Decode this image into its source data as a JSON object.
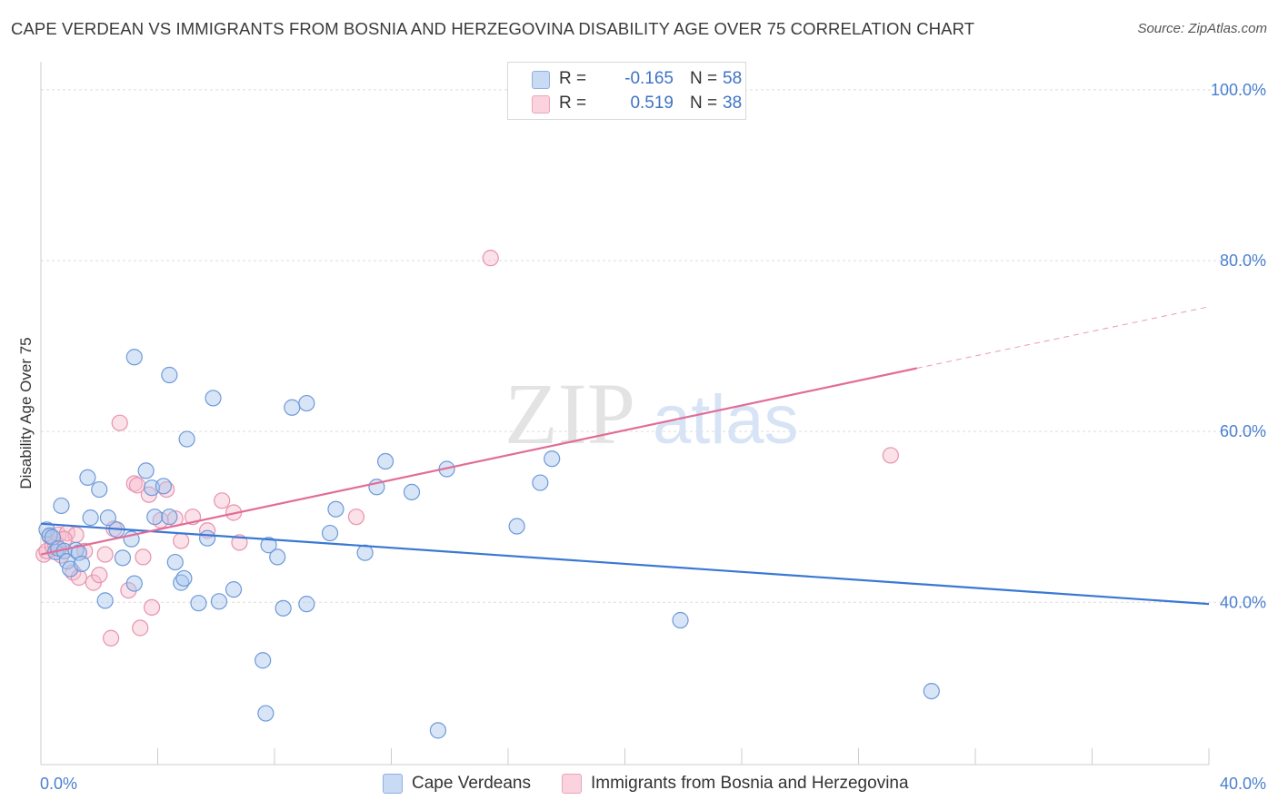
{
  "header": {
    "title": "CAPE VERDEAN VS IMMIGRANTS FROM BOSNIA AND HERZEGOVINA DISABILITY AGE OVER 75 CORRELATION CHART",
    "source": "Source: ZipAtlas.com"
  },
  "watermark": {
    "zip": "ZIP",
    "atlas": "atlas"
  },
  "legend": {
    "rows": [
      {
        "r_label": "R =",
        "r_value": "-0.165",
        "n_label": "N =",
        "n_value": "58",
        "color": "#a9c6ee"
      },
      {
        "r_label": "R =",
        "r_value": "0.519",
        "n_label": "N =",
        "n_value": "38",
        "color": "#f6bccd"
      }
    ]
  },
  "bottom_legend": {
    "cape": "Cape Verdeans",
    "bosnia": "Immigrants from Bosnia and Herzegovina"
  },
  "colors": {
    "blue_fill": "#a9c6ee",
    "blue_stroke": "#6e9ad9",
    "blue_line": "#3a78d4",
    "pink_fill": "#f6bccd",
    "pink_stroke": "#e793b0",
    "pink_line": "#e26d97",
    "axis_text": "#4a7fd0",
    "grid": "#dddddd"
  },
  "chart_data": {
    "type": "scatter",
    "title": "CAPE VERDEAN VS IMMIGRANTS FROM BOSNIA AND HERZEGOVINA DISABILITY AGE OVER 75 CORRELATION CHART",
    "xlabel": "",
    "ylabel": "Disability Age Over 75",
    "xlim": [
      0,
      40
    ],
    "ylim": [
      21,
      102
    ],
    "x_tick_labels": [
      "0.0%",
      "40.0%"
    ],
    "y_ticks": [
      40,
      60,
      80,
      100
    ],
    "y_tick_labels": [
      "40.0%",
      "60.0%",
      "80.0%",
      "100.0%"
    ],
    "grid": true,
    "legend_position": "top-center",
    "series": [
      {
        "name": "Cape Verdeans",
        "points": [
          [
            0.2,
            48.5
          ],
          [
            0.3,
            47.8
          ],
          [
            0.4,
            47.6
          ],
          [
            0.5,
            45.9
          ],
          [
            0.6,
            46.3
          ],
          [
            0.7,
            51.3
          ],
          [
            0.8,
            46.0
          ],
          [
            0.9,
            44.8
          ],
          [
            1.0,
            43.9
          ],
          [
            1.2,
            46.1
          ],
          [
            1.3,
            45.8
          ],
          [
            1.4,
            44.5
          ],
          [
            1.6,
            54.6
          ],
          [
            1.7,
            49.9
          ],
          [
            2.0,
            53.2
          ],
          [
            2.2,
            40.2
          ],
          [
            2.3,
            49.9
          ],
          [
            2.6,
            48.5
          ],
          [
            2.8,
            45.2
          ],
          [
            3.1,
            47.4
          ],
          [
            3.2,
            42.2
          ],
          [
            3.2,
            68.7
          ],
          [
            3.6,
            55.4
          ],
          [
            3.8,
            53.4
          ],
          [
            3.9,
            50.0
          ],
          [
            4.2,
            53.6
          ],
          [
            4.4,
            50.0
          ],
          [
            4.4,
            66.6
          ],
          [
            4.6,
            44.7
          ],
          [
            4.8,
            42.3
          ],
          [
            4.9,
            42.8
          ],
          [
            5.0,
            59.1
          ],
          [
            5.4,
            39.9
          ],
          [
            5.7,
            47.5
          ],
          [
            5.9,
            63.9
          ],
          [
            6.1,
            40.1
          ],
          [
            6.6,
            41.5
          ],
          [
            7.6,
            33.2
          ],
          [
            7.7,
            27.0
          ],
          [
            7.8,
            46.7
          ],
          [
            8.1,
            45.3
          ],
          [
            8.3,
            39.3
          ],
          [
            8.6,
            62.8
          ],
          [
            9.1,
            63.3
          ],
          [
            9.1,
            39.8
          ],
          [
            9.9,
            48.1
          ],
          [
            10.1,
            50.9
          ],
          [
            11.1,
            45.8
          ],
          [
            11.5,
            53.5
          ],
          [
            11.8,
            56.5
          ],
          [
            12.7,
            52.9
          ],
          [
            13.6,
            25.0
          ],
          [
            13.9,
            55.6
          ],
          [
            16.3,
            48.9
          ],
          [
            17.1,
            54.0
          ],
          [
            17.5,
            56.8
          ],
          [
            21.9,
            37.9
          ],
          [
            30.5,
            29.6
          ]
        ]
      },
      {
        "name": "Immigrants from Bosnia and Herzegovina",
        "points": [
          [
            0.1,
            45.6
          ],
          [
            0.2,
            46.0
          ],
          [
            0.3,
            47.7
          ],
          [
            0.4,
            46.5
          ],
          [
            0.5,
            46.8
          ],
          [
            0.6,
            47.9
          ],
          [
            0.7,
            45.5
          ],
          [
            0.9,
            48.1
          ],
          [
            1.1,
            43.5
          ],
          [
            1.2,
            47.9
          ],
          [
            1.3,
            42.9
          ],
          [
            1.5,
            46.0
          ],
          [
            1.8,
            42.3
          ],
          [
            2.0,
            43.2
          ],
          [
            2.2,
            45.6
          ],
          [
            2.4,
            35.8
          ],
          [
            2.5,
            48.6
          ],
          [
            2.7,
            61.0
          ],
          [
            3.0,
            41.4
          ],
          [
            3.2,
            53.9
          ],
          [
            3.3,
            53.7
          ],
          [
            3.4,
            37.0
          ],
          [
            3.5,
            45.3
          ],
          [
            3.7,
            52.6
          ],
          [
            3.8,
            39.4
          ],
          [
            4.1,
            49.6
          ],
          [
            4.3,
            53.2
          ],
          [
            4.6,
            49.8
          ],
          [
            4.8,
            47.2
          ],
          [
            5.2,
            50.0
          ],
          [
            5.7,
            48.4
          ],
          [
            6.2,
            51.9
          ],
          [
            6.6,
            50.5
          ],
          [
            6.8,
            47.0
          ],
          [
            10.8,
            50.0
          ],
          [
            15.4,
            80.3
          ],
          [
            29.1,
            57.2
          ],
          [
            0.8,
            47.4
          ]
        ]
      }
    ],
    "trend_lines": [
      {
        "series": "Cape Verdeans",
        "x": [
          0,
          40
        ],
        "y": [
          49.2,
          39.8
        ]
      },
      {
        "series": "Immigrants from Bosnia and Herzegovina",
        "x": [
          0,
          30
        ],
        "y": [
          45.6,
          67.4
        ],
        "dashed_to": [
          40,
          74.6
        ]
      }
    ]
  }
}
